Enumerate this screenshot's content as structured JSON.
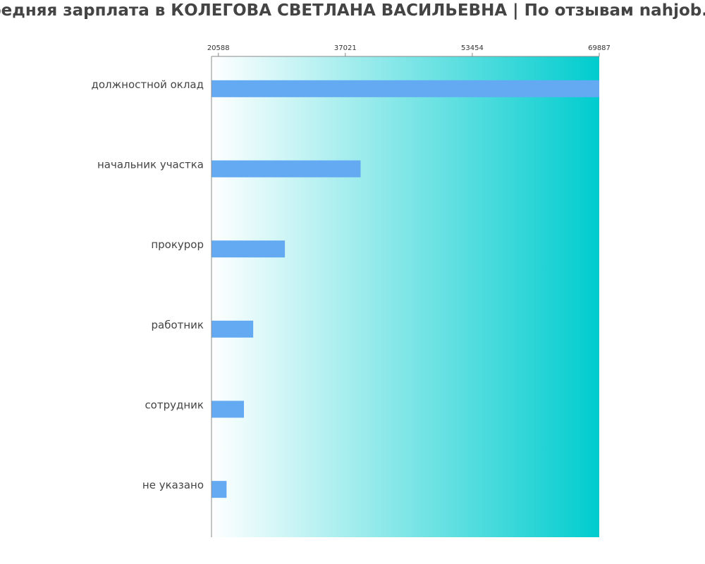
{
  "chart_data": {
    "type": "bar",
    "orientation": "horizontal",
    "title": "Средняя зарплата в КОЛЕГОВА СВЕТЛАНА ВАСИЛЬЕВНА | По отзывам nahjob.ru",
    "xlabel": "",
    "ylabel": "",
    "categories": [
      "должностной оклад",
      "начальник участка",
      "прокурор",
      "работник",
      "сотрудник",
      "не указано"
    ],
    "values": [
      69887,
      39000,
      29200,
      25100,
      23900,
      21650
    ],
    "xlim": [
      19700,
      69887
    ],
    "x_ticks": [
      "20588",
      "37021",
      "53454",
      "69887"
    ],
    "grid": false,
    "bar_color": "#64aaf2",
    "background_gradient": [
      "#ffffff",
      "#00ccce"
    ]
  }
}
